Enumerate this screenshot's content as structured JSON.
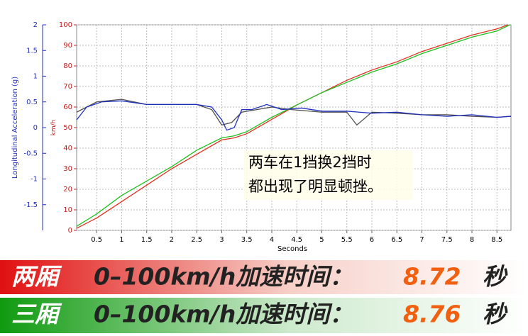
{
  "chart_data": {
    "type": "line",
    "x_label": "Seconds",
    "y_label": "Longitudinal Acceleration (g)",
    "y2_label": "km/h",
    "annotation": [
      "两车在1挡换2挡时",
      "都出现了明显顿挫。"
    ],
    "xlim": [
      0.1,
      8.78
    ],
    "xticks": [
      0.5,
      1,
      1.5,
      2,
      2.5,
      3,
      3.5,
      4,
      4.5,
      5,
      5.5,
      6,
      6.5,
      7,
      7.5,
      8,
      8.5
    ],
    "ylim": [
      -2,
      2
    ],
    "yticks": [
      -1.5,
      -1,
      -0.5,
      0,
      0.5,
      1,
      1.5,
      2
    ],
    "y2lim": [
      0,
      100
    ],
    "y2ticks": [
      0,
      10,
      20,
      30,
      40,
      50,
      60,
      70,
      80,
      90,
      100
    ],
    "grid": true,
    "series": [
      {
        "color": "#e03020",
        "axis": "y2",
        "x": [
          0.1,
          0.5,
          1,
          1.5,
          2,
          2.5,
          3,
          3.25,
          3.5,
          4,
          4.5,
          5,
          5.5,
          6,
          6.5,
          7,
          7.5,
          8,
          8.5,
          8.72
        ],
        "values": [
          1,
          6,
          14,
          22,
          30,
          37,
          44,
          45,
          47,
          54,
          61,
          67,
          73,
          78,
          82,
          87,
          91,
          95,
          98,
          100
        ]
      },
      {
        "color": "#20c020",
        "axis": "y2",
        "x": [
          0.1,
          0.5,
          1,
          1.5,
          2,
          2.5,
          3,
          3.25,
          3.5,
          4,
          4.5,
          5,
          5.5,
          6,
          6.5,
          7,
          7.5,
          8,
          8.5,
          8.76
        ],
        "values": [
          2,
          8,
          17,
          24,
          31,
          39,
          45,
          46,
          48,
          55,
          61,
          67,
          72,
          77,
          81,
          86,
          90,
          94,
          97,
          100
        ]
      },
      {
        "color": "#505050",
        "axis": "y",
        "x": [
          0.1,
          0.5,
          1,
          1.5,
          2,
          2.5,
          2.8,
          3.0,
          3.2,
          3.4,
          3.7,
          4.0,
          4.4,
          5,
          5.5,
          5.7,
          6,
          6.5,
          7,
          7.5,
          8,
          8.5,
          8.78
        ],
        "values": [
          0.3,
          0.5,
          0.55,
          0.45,
          0.45,
          0.45,
          0.35,
          0.05,
          0.1,
          0.3,
          0.35,
          0.4,
          0.35,
          0.3,
          0.3,
          0.05,
          0.3,
          0.28,
          0.25,
          0.25,
          0.22,
          0.2,
          0.22
        ]
      },
      {
        "color": "#2030c0",
        "axis": "y",
        "x": [
          0.1,
          0.3,
          0.6,
          1,
          1.5,
          2,
          2.5,
          2.8,
          3.0,
          3.1,
          3.25,
          3.4,
          3.6,
          3.9,
          4.2,
          4.6,
          5,
          5.5,
          6,
          6.5,
          7,
          7.5,
          8,
          8.5,
          8.78
        ],
        "values": [
          0.15,
          0.4,
          0.5,
          0.52,
          0.45,
          0.45,
          0.45,
          0.4,
          0.15,
          -0.05,
          0.0,
          0.35,
          0.35,
          0.45,
          0.35,
          0.38,
          0.32,
          0.32,
          0.28,
          0.3,
          0.25,
          0.22,
          0.25,
          0.2,
          0.22
        ]
      }
    ]
  },
  "banners": [
    {
      "label": "两厢",
      "text": "0–100km/h加速时间：",
      "time": "8.72",
      "unit": "秒"
    },
    {
      "label": "三厢",
      "text": "0–100km/h加速时间：",
      "time": "8.76",
      "unit": "秒"
    }
  ]
}
